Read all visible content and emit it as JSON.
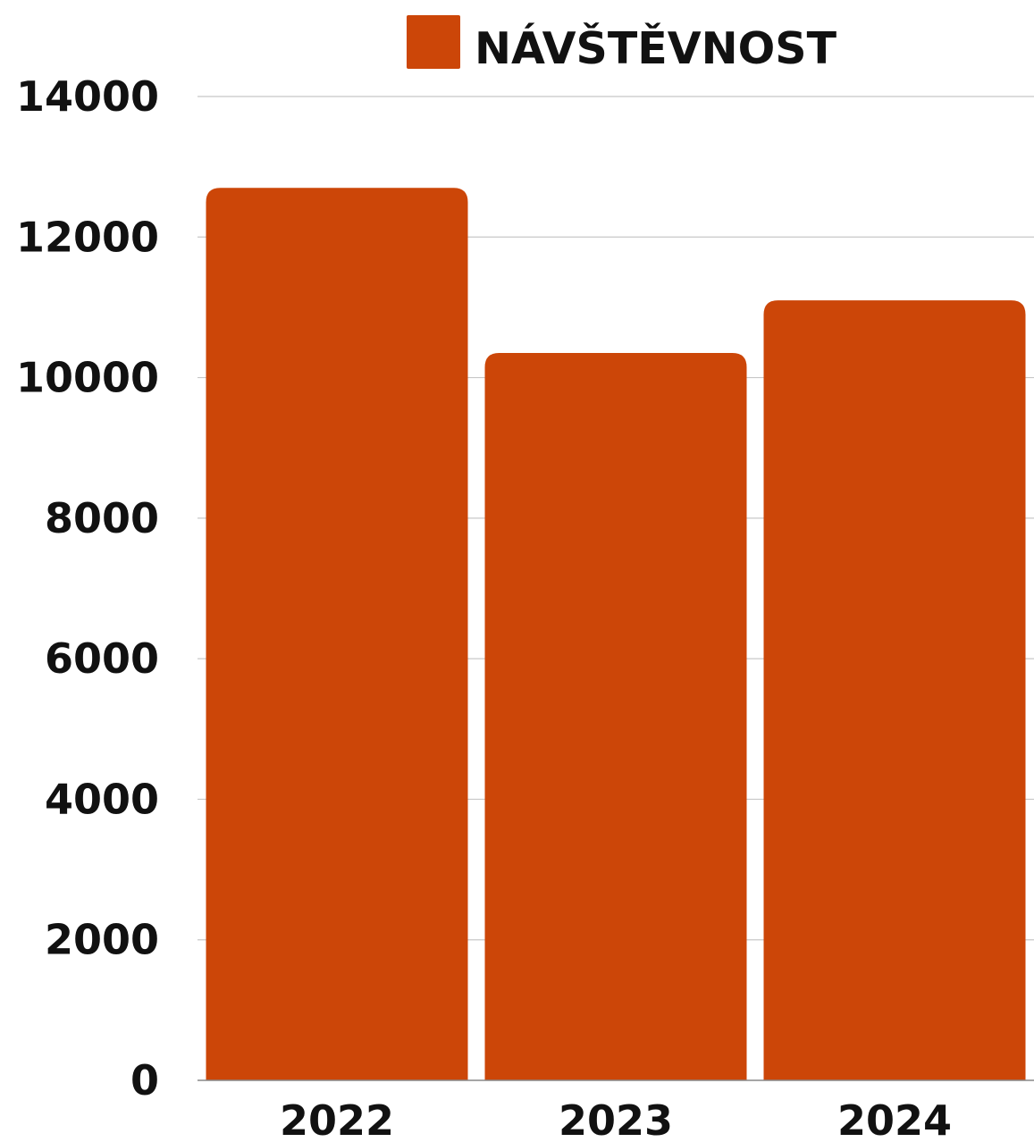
{
  "chart_data": {
    "type": "bar",
    "title": "",
    "xlabel": "",
    "ylabel": "",
    "categories": [
      "2022",
      "2023",
      "2024"
    ],
    "series": [
      {
        "name": "NÁVŠTĚVNOST",
        "values": [
          12700,
          10350,
          11100
        ],
        "color": "#cc4608"
      }
    ],
    "ylim": [
      0,
      14000
    ],
    "yticks": [
      "0",
      "2000",
      "4000",
      "6000",
      "8000",
      "10000",
      "12000",
      "14000"
    ],
    "grid": true,
    "grid_color": "#c8c8c8",
    "axis_color": "#888888",
    "legend_position": "top-center"
  }
}
